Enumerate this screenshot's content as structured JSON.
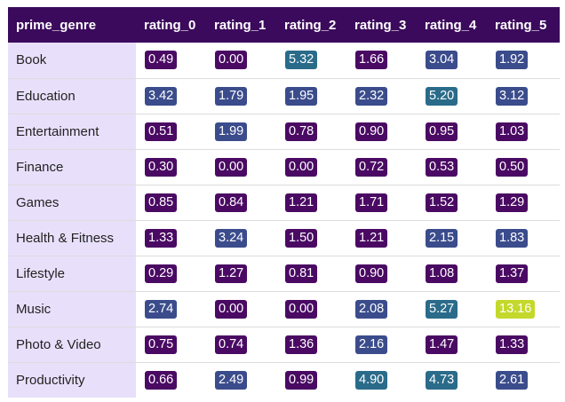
{
  "table": {
    "columns": [
      "prime_genre",
      "rating_0",
      "rating_1",
      "rating_2",
      "rating_3",
      "rating_4",
      "rating_5"
    ],
    "rows": [
      {
        "genre": "Book",
        "values": [
          "0.49",
          "0.00",
          "5.32",
          "1.66",
          "3.04",
          "1.92"
        ]
      },
      {
        "genre": "Education",
        "values": [
          "3.42",
          "1.79",
          "1.95",
          "2.32",
          "5.20",
          "3.12"
        ]
      },
      {
        "genre": "Entertainment",
        "values": [
          "0.51",
          "1.99",
          "0.78",
          "0.90",
          "0.95",
          "1.03"
        ]
      },
      {
        "genre": "Finance",
        "values": [
          "0.30",
          "0.00",
          "0.00",
          "0.72",
          "0.53",
          "0.50"
        ]
      },
      {
        "genre": "Games",
        "values": [
          "0.85",
          "0.84",
          "1.21",
          "1.71",
          "1.52",
          "1.29"
        ]
      },
      {
        "genre": "Health & Fitness",
        "values": [
          "1.33",
          "3.24",
          "1.50",
          "1.21",
          "2.15",
          "1.83"
        ]
      },
      {
        "genre": "Lifestyle",
        "values": [
          "0.29",
          "1.27",
          "0.81",
          "0.90",
          "1.08",
          "1.37"
        ]
      },
      {
        "genre": "Music",
        "values": [
          "2.74",
          "0.00",
          "0.00",
          "2.08",
          "5.27",
          "13.16"
        ]
      },
      {
        "genre": "Photo & Video",
        "values": [
          "0.75",
          "0.74",
          "1.36",
          "2.16",
          "1.47",
          "1.33"
        ]
      },
      {
        "genre": "Productivity",
        "values": [
          "0.66",
          "2.49",
          "0.99",
          "4.90",
          "4.73",
          "2.61"
        ]
      }
    ]
  },
  "colors": {
    "header_bg": "#3b0a5c",
    "index_bg": "#e8e0fb",
    "chip_low": "#4a0a63",
    "chip_mid": "#3b4c8c",
    "chip_high": "#2a6b8a",
    "chip_max": "#c4d82b"
  }
}
